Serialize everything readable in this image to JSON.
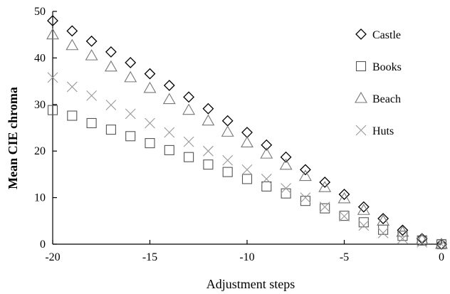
{
  "chart_data": {
    "type": "scatter",
    "title": "",
    "xlabel": "Adjustment steps",
    "ylabel": "Mean CIE chroma",
    "xlim": [
      -20,
      0
    ],
    "ylim": [
      0,
      50
    ],
    "xticks": [
      -20,
      -15,
      -10,
      -5,
      0
    ],
    "yticks": [
      0,
      10,
      20,
      30,
      40,
      50
    ],
    "grid": false,
    "legend": "top-right",
    "x": [
      -20,
      -19,
      -18,
      -17,
      -16,
      -15,
      -14,
      -13,
      -12,
      -11,
      -10,
      -9,
      -8,
      -7,
      -6,
      -5,
      -4,
      -3,
      -2,
      -1,
      0
    ],
    "series": [
      {
        "name": "Castle",
        "marker": "diamond",
        "color": "#000000",
        "values": [
          48,
          45.8,
          43.6,
          41.3,
          39,
          36.6,
          34.1,
          31.6,
          29.1,
          26.5,
          24,
          21.3,
          18.7,
          16,
          13.3,
          10.7,
          8,
          5.5,
          3,
          1.2,
          0
        ]
      },
      {
        "name": "Books",
        "marker": "square",
        "color": "#555555",
        "values": [
          28.8,
          27.6,
          26,
          24.6,
          23.2,
          21.7,
          20.2,
          18.7,
          17.1,
          15.5,
          14,
          12.4,
          10.9,
          9.3,
          7.7,
          6.1,
          4.7,
          3.1,
          1.8,
          0.8,
          0
        ]
      },
      {
        "name": "Beach",
        "marker": "triangle",
        "color": "#777777",
        "values": [
          45,
          42.7,
          40.5,
          38.1,
          35.8,
          33.5,
          31.1,
          28.8,
          26.5,
          24.1,
          21.8,
          19.4,
          17,
          14.6,
          12.2,
          9.8,
          7.3,
          5,
          2.6,
          1,
          0
        ]
      },
      {
        "name": "Huts",
        "marker": "cross",
        "color": "#999999",
        "values": [
          35.8,
          33.8,
          31.9,
          29.9,
          28,
          26,
          24,
          22,
          20,
          18,
          16,
          14,
          12,
          10,
          8,
          6,
          4,
          2.4,
          1.2,
          0.4,
          0
        ]
      }
    ]
  }
}
